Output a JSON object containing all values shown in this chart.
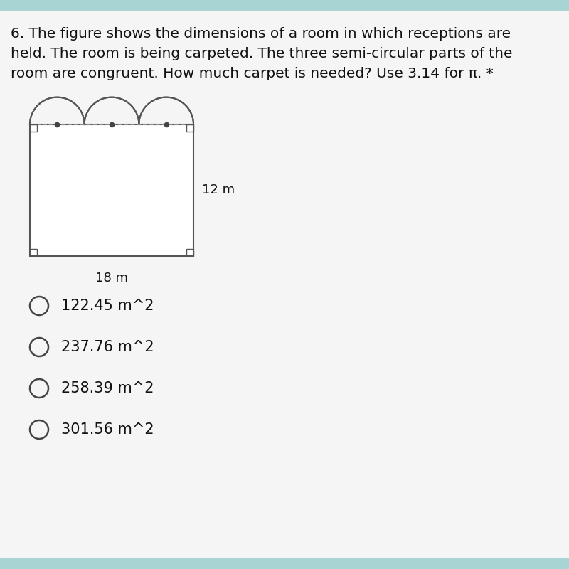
{
  "background_color": "#f5f5f5",
  "bg_stripe_color": "#a8d4d4",
  "title_lines": [
    "6. The figure shows the dimensions of a room in which receptions are",
    "held. The room is being carpeted. The three semi-circular parts of the",
    "room are congruent. How much carpet is needed? Use 3.14 for π. *"
  ],
  "title_fontsize": 14.5,
  "choices": [
    "122.45 m^2",
    "237.76 m^2",
    "258.39 m^2",
    "301.56 m^2"
  ],
  "choice_fontsize": 15,
  "dim_label_width": "18 m",
  "dim_label_height": "12 m",
  "rect_color": "#ffffff",
  "rect_edge_color": "#555555",
  "semicircle_color": "#f5f5f5",
  "semicircle_edge_color": "#555555",
  "dashed_line_color": "#999999",
  "dot_color": "#444444",
  "line_width": 1.5
}
